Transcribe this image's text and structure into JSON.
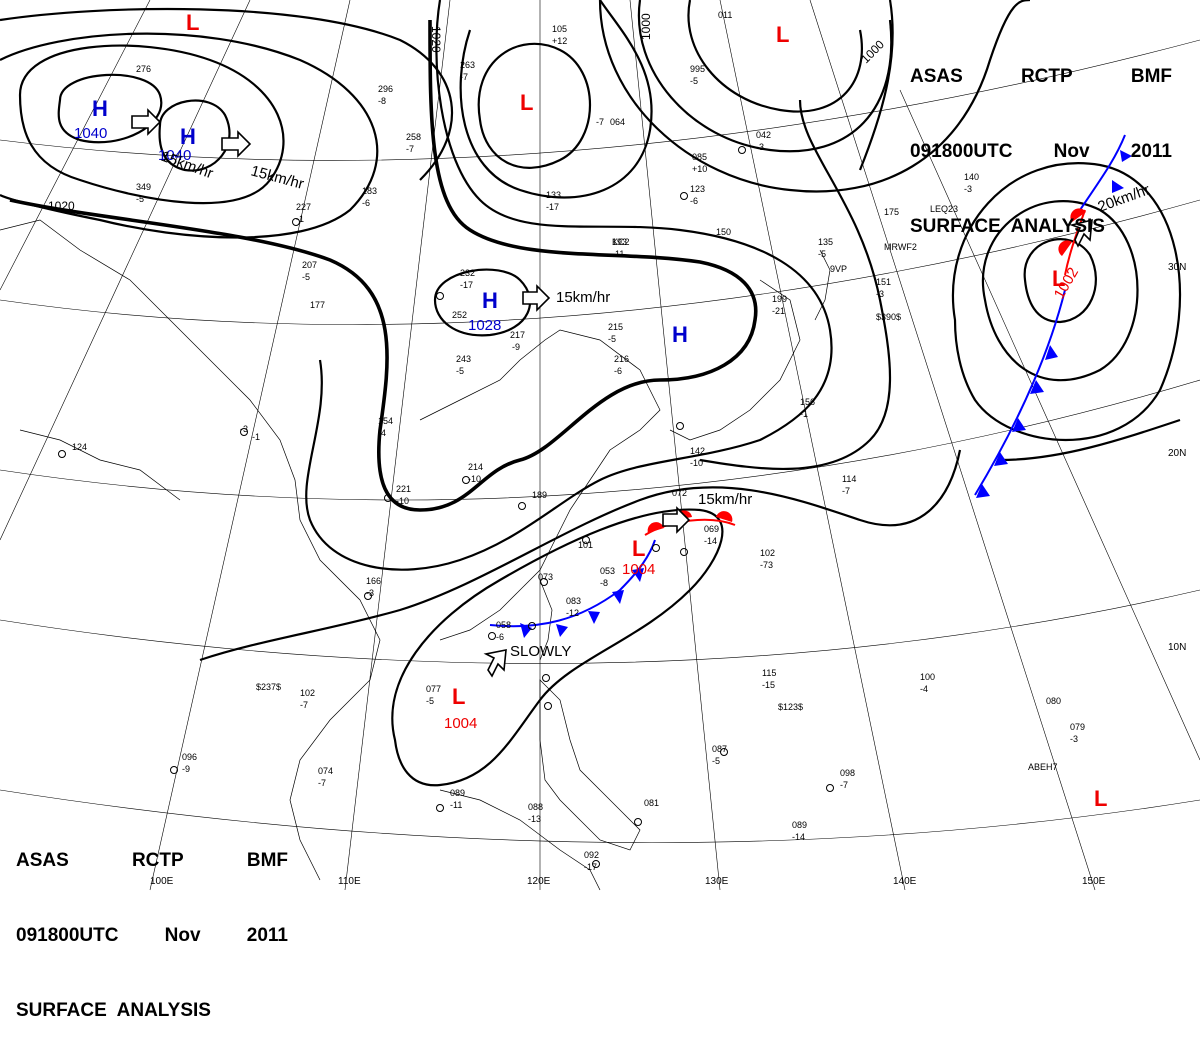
{
  "header": {
    "line1": [
      "ASAS",
      "RCTP",
      "BMF"
    ],
    "line2": [
      "091800UTC",
      "Nov",
      "2011"
    ],
    "line3": "SURFACE  ANALYSIS"
  },
  "pressure_centers": [
    {
      "type": "H",
      "value": "1040"
    },
    {
      "type": "H",
      "value": "1040"
    },
    {
      "type": "H",
      "value": "1028"
    },
    {
      "type": "H",
      "value": ""
    },
    {
      "type": "L",
      "value": ""
    },
    {
      "type": "L",
      "value": ""
    },
    {
      "type": "L",
      "value": ""
    },
    {
      "type": "L",
      "value": "1004"
    },
    {
      "type": "L",
      "value": "1004"
    },
    {
      "type": "L",
      "value": "1002"
    },
    {
      "type": "L",
      "value": ""
    }
  ],
  "isobar_labels": [
    "1020",
    "1020",
    "1000",
    "1000"
  ],
  "motion_labels": [
    "15km/hr",
    "15km/hr",
    "15km/hr",
    "15km/hr",
    "20km/hr",
    "SLOWLY"
  ],
  "longitude_labels": [
    "100E",
    "110E",
    "120E",
    "130E",
    "140E",
    "150E"
  ],
  "latitude_labels": [
    "30N",
    "20N",
    "10N"
  ],
  "stations": [
    "193",
    "-11",
    "232",
    "-17",
    "252",
    "217",
    "-9",
    "243",
    "-5",
    "214",
    "-10",
    "221",
    "-10",
    "189",
    "101",
    "053",
    "-8",
    "083",
    "-12",
    "073",
    "058",
    "-6",
    "072",
    "069",
    "-14",
    "102",
    "-73",
    "114",
    "-7",
    "115",
    "-15",
    "100",
    "-4",
    "080",
    "079",
    "-3",
    "087",
    "-5",
    "098",
    "-7",
    "089",
    "-14",
    "092",
    "-17",
    "088",
    "-13",
    "081",
    "089",
    "-11",
    "074",
    "-7",
    "102",
    "-7",
    "077",
    "-5",
    "096",
    "-9",
    "124",
    "-3",
    "-1",
    "154",
    "-4",
    "166",
    "-3",
    "177",
    "207",
    "-5",
    "227",
    "-1",
    "258",
    "-7",
    "296",
    "-8",
    "263",
    "-7",
    "133",
    "-17",
    "064",
    "-7",
    "085",
    "+10",
    "123",
    "-6",
    "150",
    "135",
    "-5",
    "151",
    "-3",
    "175",
    "140",
    "-3",
    "105",
    "+12",
    "215",
    "-5",
    "199",
    "-21",
    "156",
    "-1",
    "216",
    "-6",
    "142",
    "-10",
    "349",
    "-5",
    "276",
    "183",
    "-6",
    "042",
    "-3",
    "995",
    "-5",
    "011",
    "$390$",
    "$237$",
    "$123$",
    "ABEH7",
    "MRWF2",
    "LEQ23",
    "9VP",
    "KC2"
  ]
}
